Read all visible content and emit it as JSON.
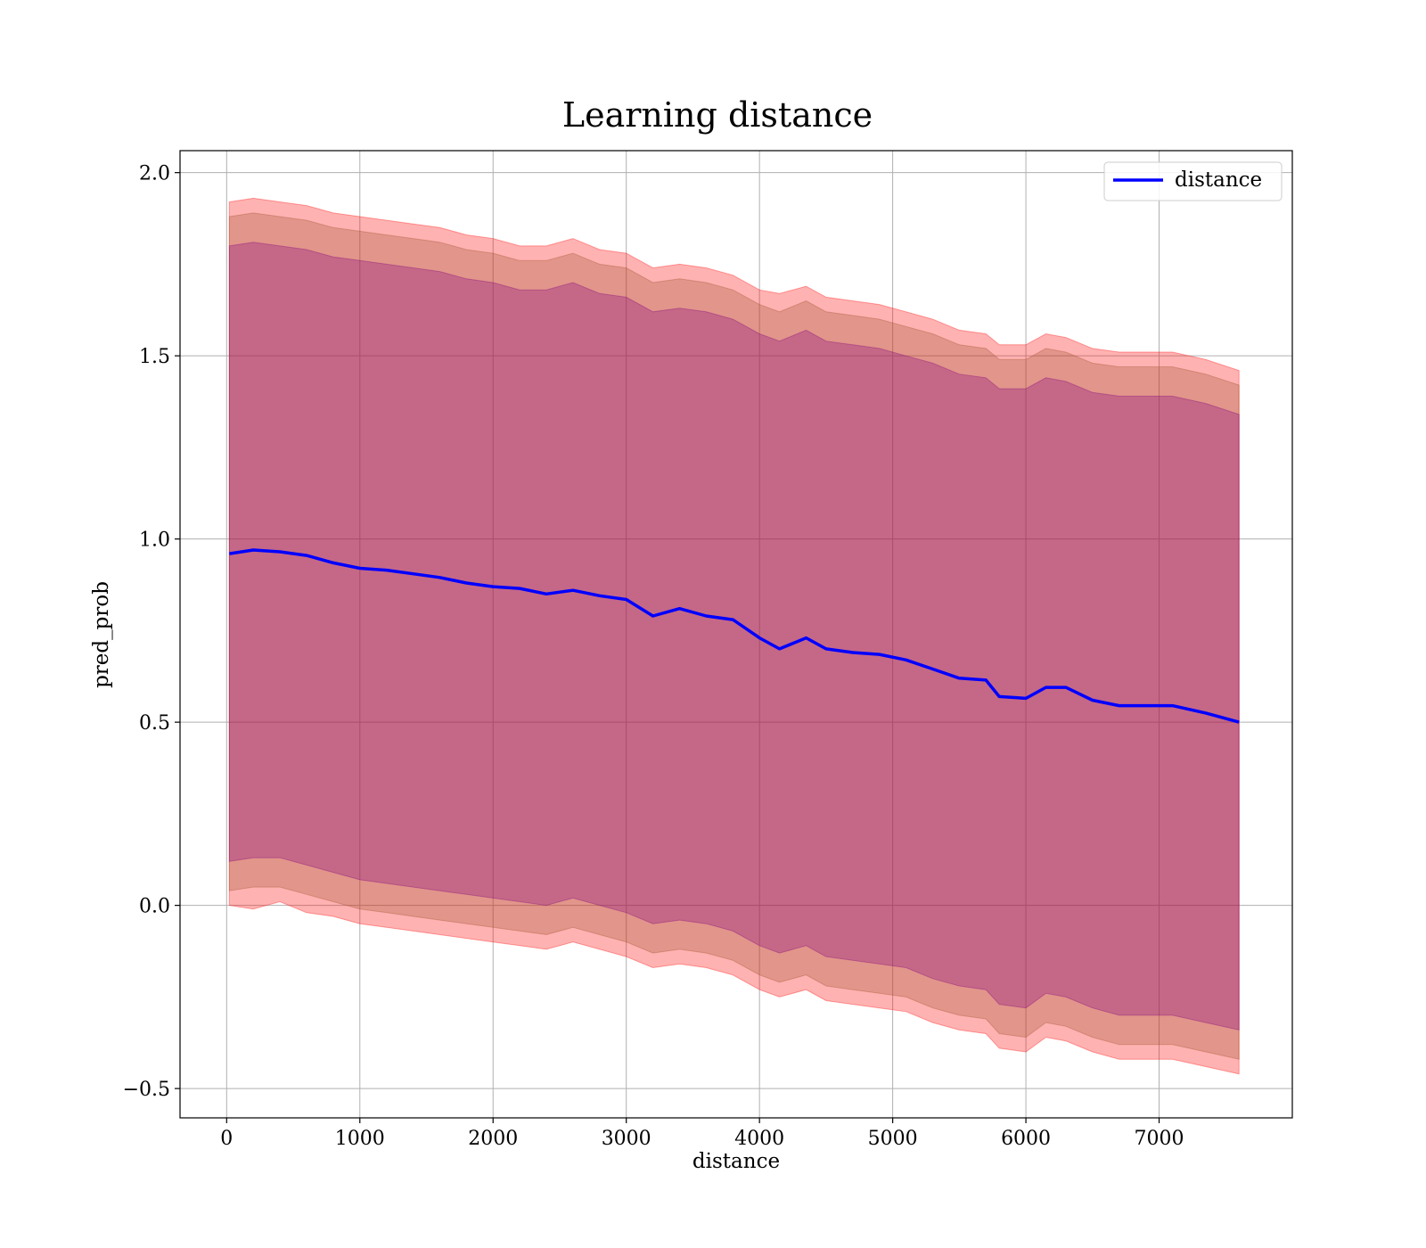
{
  "chart_data": {
    "type": "line",
    "title": "Learning distance",
    "xlabel": "distance",
    "ylabel": "pred_prob",
    "xlim": [
      -350,
      8000
    ],
    "ylim": [
      -0.58,
      2.06
    ],
    "xticks": [
      0,
      1000,
      2000,
      3000,
      4000,
      5000,
      6000,
      7000
    ],
    "yticks": [
      -0.5,
      0.0,
      0.5,
      1.0,
      1.5,
      2.0
    ],
    "ytick_labels": [
      "−0.5",
      "0.0",
      "0.5",
      "1.0",
      "1.5",
      "2.0"
    ],
    "grid": true,
    "legend_position": "top-right",
    "colors": {
      "line": "#0000ff",
      "band_outer": "#ff0000",
      "band_middle": "#a0522d",
      "band_inner": "#800080"
    },
    "band_opacity": 0.3,
    "x": [
      20,
      200,
      400,
      600,
      800,
      1000,
      1200,
      1400,
      1600,
      1800,
      2000,
      2200,
      2400,
      2600,
      2800,
      3000,
      3200,
      3400,
      3600,
      3800,
      4000,
      4150,
      4350,
      4500,
      4700,
      4900,
      5100,
      5300,
      5500,
      5700,
      5800,
      6000,
      6150,
      6300,
      6500,
      6700,
      6900,
      7100,
      7350,
      7600
    ],
    "series": [
      {
        "name": "distance",
        "values": [
          0.96,
          0.97,
          0.965,
          0.955,
          0.935,
          0.92,
          0.915,
          0.905,
          0.895,
          0.88,
          0.87,
          0.865,
          0.85,
          0.86,
          0.845,
          0.835,
          0.79,
          0.81,
          0.79,
          0.78,
          0.73,
          0.7,
          0.73,
          0.7,
          0.69,
          0.685,
          0.67,
          0.645,
          0.62,
          0.615,
          0.57,
          0.565,
          0.595,
          0.595,
          0.56,
          0.545,
          0.545,
          0.545,
          0.525,
          0.5
        ]
      }
    ],
    "bands": [
      {
        "upper": [
          1.92,
          1.93,
          1.92,
          1.91,
          1.89,
          1.88,
          1.87,
          1.86,
          1.85,
          1.83,
          1.82,
          1.8,
          1.8,
          1.82,
          1.79,
          1.78,
          1.74,
          1.75,
          1.74,
          1.72,
          1.68,
          1.67,
          1.69,
          1.66,
          1.65,
          1.64,
          1.62,
          1.6,
          1.57,
          1.56,
          1.53,
          1.53,
          1.56,
          1.55,
          1.52,
          1.51,
          1.51,
          1.51,
          1.49,
          1.46
        ],
        "lower": [
          0.0,
          -0.01,
          0.01,
          -0.02,
          -0.03,
          -0.05,
          -0.06,
          -0.07,
          -0.08,
          -0.09,
          -0.1,
          -0.11,
          -0.12,
          -0.1,
          -0.12,
          -0.14,
          -0.17,
          -0.16,
          -0.17,
          -0.19,
          -0.23,
          -0.25,
          -0.23,
          -0.26,
          -0.27,
          -0.28,
          -0.29,
          -0.32,
          -0.34,
          -0.35,
          -0.39,
          -0.4,
          -0.36,
          -0.37,
          -0.4,
          -0.42,
          -0.42,
          -0.42,
          -0.44,
          -0.46
        ]
      },
      {
        "upper": [
          1.88,
          1.89,
          1.88,
          1.87,
          1.85,
          1.84,
          1.83,
          1.82,
          1.81,
          1.79,
          1.78,
          1.76,
          1.76,
          1.78,
          1.75,
          1.74,
          1.7,
          1.71,
          1.7,
          1.68,
          1.64,
          1.62,
          1.65,
          1.62,
          1.61,
          1.6,
          1.58,
          1.56,
          1.53,
          1.52,
          1.49,
          1.49,
          1.52,
          1.51,
          1.48,
          1.47,
          1.47,
          1.47,
          1.45,
          1.42
        ],
        "lower": [
          0.04,
          0.05,
          0.05,
          0.03,
          0.01,
          -0.01,
          -0.02,
          -0.03,
          -0.04,
          -0.05,
          -0.06,
          -0.07,
          -0.08,
          -0.06,
          -0.08,
          -0.1,
          -0.13,
          -0.12,
          -0.13,
          -0.15,
          -0.19,
          -0.21,
          -0.19,
          -0.22,
          -0.23,
          -0.24,
          -0.25,
          -0.28,
          -0.3,
          -0.31,
          -0.35,
          -0.36,
          -0.32,
          -0.33,
          -0.36,
          -0.38,
          -0.38,
          -0.38,
          -0.4,
          -0.42
        ]
      },
      {
        "upper": [
          1.8,
          1.81,
          1.8,
          1.79,
          1.77,
          1.76,
          1.75,
          1.74,
          1.73,
          1.71,
          1.7,
          1.68,
          1.68,
          1.7,
          1.67,
          1.66,
          1.62,
          1.63,
          1.62,
          1.6,
          1.56,
          1.54,
          1.57,
          1.54,
          1.53,
          1.52,
          1.5,
          1.48,
          1.45,
          1.44,
          1.41,
          1.41,
          1.44,
          1.43,
          1.4,
          1.39,
          1.39,
          1.39,
          1.37,
          1.34
        ],
        "lower": [
          0.12,
          0.13,
          0.13,
          0.11,
          0.09,
          0.07,
          0.06,
          0.05,
          0.04,
          0.03,
          0.02,
          0.01,
          0.0,
          0.02,
          0.0,
          -0.02,
          -0.05,
          -0.04,
          -0.05,
          -0.07,
          -0.11,
          -0.13,
          -0.11,
          -0.14,
          -0.15,
          -0.16,
          -0.17,
          -0.2,
          -0.22,
          -0.23,
          -0.27,
          -0.28,
          -0.24,
          -0.25,
          -0.28,
          -0.3,
          -0.3,
          -0.3,
          -0.32,
          -0.34
        ]
      }
    ]
  }
}
